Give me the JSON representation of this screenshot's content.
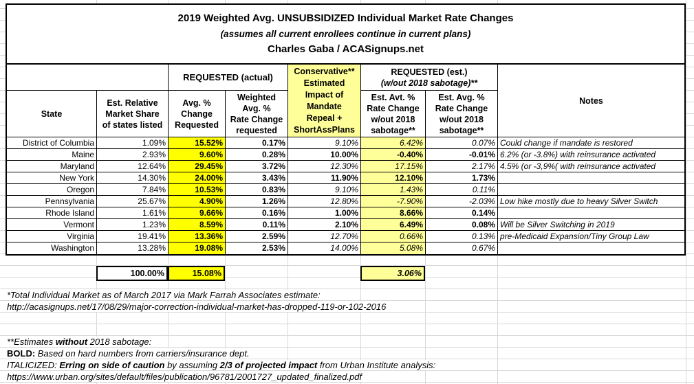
{
  "title": {
    "line1": "2019 Weighted Avg. UNSUBSIDIZED Individual Market Rate Changes",
    "line2": "(assumes all current enrollees continue in current plans)",
    "line3": "Charles Gaba / ACASignups.net"
  },
  "table": {
    "headers": {
      "corner": "",
      "requested_actual": "REQUESTED (actual)",
      "conservative": "Conservative**\nEstimated\nImpact of\nMandate\nRepeal +\nShortAssPlans",
      "requested_est_line1": "REQUESTED (est.)",
      "requested_est_line2": "(w/out 2018 sabotage)**",
      "notes": "Notes",
      "state": "State",
      "market_share": "Est. Relative\nMarket Share\nof states listed",
      "avg_change": "Avg. %\nChange\nRequested",
      "weighted_avg": "Weighted\nAvg. %\nRate Change\nrequested",
      "est_rate": "Est. Avt. %\nRate Change\nw/out 2018\nsabotage**",
      "est_avg": "Est. Avg. %\nRate Change\nw/out 2018\nsabotage**"
    },
    "rows": [
      {
        "state": "District of Columbia",
        "share": "1.09%",
        "req_avg": "15.52%",
        "req_weighted": "0.17%",
        "impact": "9.10%",
        "est_rate": "6.42%",
        "est_avg": "0.07%",
        "note": "Could change if mandate is restored",
        "basis": "estimated"
      },
      {
        "state": "Maine",
        "share": "2.93%",
        "req_avg": "9.60%",
        "req_weighted": "0.28%",
        "impact": "10.00%",
        "est_rate": "-0.40%",
        "est_avg": "-0.01%",
        "note": "6.2% (or -3.8%) with reinsurance activated",
        "basis": "hard"
      },
      {
        "state": "Maryland",
        "share": "12.64%",
        "req_avg": "29.45%",
        "req_weighted": "3.72%",
        "impact": "12.30%",
        "est_rate": "17.15%",
        "est_avg": "2.17%",
        "note": "4.5% (or -3,9%( with reinsurance activated",
        "basis": "estimated"
      },
      {
        "state": "New York",
        "share": "14.30%",
        "req_avg": "24.00%",
        "req_weighted": "3.43%",
        "impact": "11.90%",
        "est_rate": "12.10%",
        "est_avg": "1.73%",
        "note": "",
        "basis": "hard"
      },
      {
        "state": "Oregon",
        "share": "7.84%",
        "req_avg": "10.53%",
        "req_weighted": "0.83%",
        "impact": "9.10%",
        "est_rate": "1.43%",
        "est_avg": "0.11%",
        "note": "",
        "basis": "estimated"
      },
      {
        "state": "Pennsylvania",
        "share": "25.67%",
        "req_avg": "4.90%",
        "req_weighted": "1.26%",
        "impact": "12.80%",
        "est_rate": "-7.90%",
        "est_avg": "-2.03%",
        "note": "Low hike mostly due to heavy Silver Switch",
        "basis": "estimated"
      },
      {
        "state": "Rhode Island",
        "share": "1.61%",
        "req_avg": "9.66%",
        "req_weighted": "0.16%",
        "impact": "1.00%",
        "est_rate": "8.66%",
        "est_avg": "0.14%",
        "note": "",
        "basis": "hard"
      },
      {
        "state": "Vermont",
        "share": "1.23%",
        "req_avg": "8.59%",
        "req_weighted": "0.11%",
        "impact": "2.10%",
        "est_rate": "6.49%",
        "est_avg": "0.08%",
        "note": "Will be Silver Switching in 2019",
        "basis": "hard"
      },
      {
        "state": "Virginia",
        "share": "19.41%",
        "req_avg": "13.36%",
        "req_weighted": "2.59%",
        "impact": "12.70%",
        "est_rate": "0.66%",
        "est_avg": "0.13%",
        "note": "pre-Medicaid Expansion/Tiny Group Law",
        "basis": "estimated"
      },
      {
        "state": "Washington",
        "share": "13.28%",
        "req_avg": "19.08%",
        "req_weighted": "2.53%",
        "impact": "14.00%",
        "est_rate": "5.08%",
        "est_avg": "0.67%",
        "note": "",
        "basis": "estimated"
      }
    ],
    "totals": {
      "share": "100.00%",
      "req_avg": "15.08%",
      "est_rate": "3.06%"
    }
  },
  "footer": {
    "lines": [
      {
        "segments": [
          {
            "t": "*Total Individual Market as of March 2017 via Mark Farrah Associates estimate:",
            "i": true
          }
        ]
      },
      {
        "segments": [
          {
            "t": "http://acasignups.net/17/08/29/major-correction-individual-market-has-dropped-119-or-102-2016",
            "i": true
          }
        ]
      },
      {
        "segments": [
          {
            "t": "**Estimates ",
            "i": true
          },
          {
            "t": "without",
            "b": true,
            "i": true
          },
          {
            "t": " 2018 sabotage:",
            "i": true
          }
        ]
      },
      {
        "segments": [
          {
            "t": "BOLD: ",
            "b": true
          },
          {
            "t": "Based on hard numbers from carriers/insurance dept.",
            "i": true
          }
        ]
      },
      {
        "segments": [
          {
            "t": "ITALICIZED: ",
            "i": true
          },
          {
            "t": "Erring on side of caution",
            "b": true,
            "i": true
          },
          {
            "t": " by assuming ",
            "i": true
          },
          {
            "t": "2/3 of projected impact",
            "b": true,
            "i": true
          },
          {
            "t": " from Urban Institute analysis:",
            "i": true
          }
        ]
      },
      {
        "segments": [
          {
            "t": "https://www.urban.org/sites/default/files/publication/96781/2001727_updated_finalized.pdf",
            "i": true
          }
        ]
      }
    ]
  },
  "colors": {
    "highlight_yellow": "#FFFF00",
    "highlight_light_yellow": "#FFFF99",
    "gridline": "#D8D8D8",
    "border": "#000000"
  }
}
